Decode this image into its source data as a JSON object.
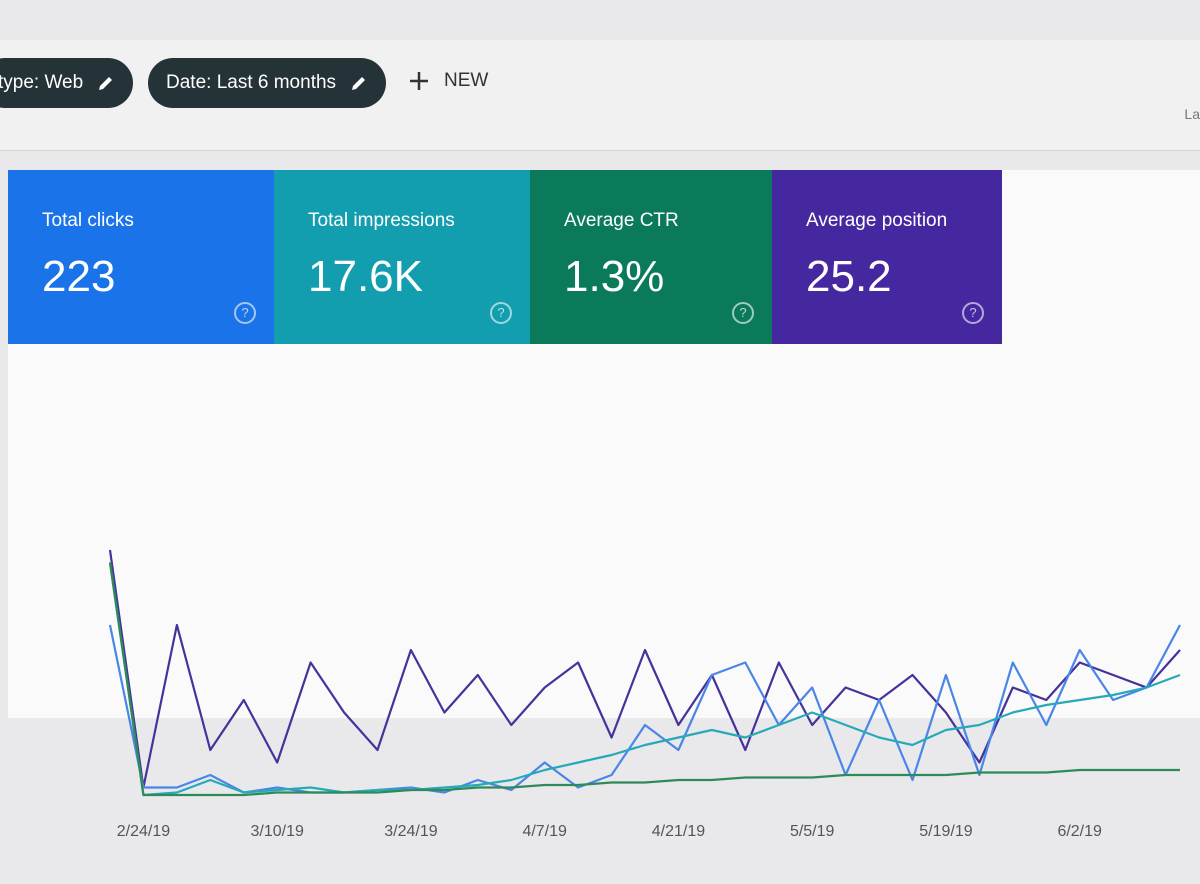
{
  "toolbar": {
    "chips": [
      "type: Web",
      "Date: Last 6 months"
    ],
    "new_button": "NEW",
    "right_text": "La"
  },
  "cards": [
    {
      "label": "Total clicks",
      "value": "223",
      "color": "#1a73e8"
    },
    {
      "label": "Total impressions",
      "value": "17.6K",
      "color": "#129eaf"
    },
    {
      "label": "Average CTR",
      "value": "1.3%",
      "color": "#0b7a5b"
    },
    {
      "label": "Average position",
      "value": "25.2",
      "color": "#4527a0"
    }
  ],
  "help_icon": "?",
  "chart_data": {
    "type": "line",
    "categories": [
      null,
      "2/24/19",
      null,
      null,
      null,
      "3/10/19",
      null,
      null,
      null,
      "3/24/19",
      null,
      null,
      null,
      "4/7/19",
      null,
      null,
      null,
      "4/21/19",
      null,
      null,
      null,
      "5/5/19",
      null,
      null,
      null,
      "5/19/19",
      null,
      null,
      null,
      "6/2/19",
      null,
      null,
      null
    ],
    "ylim": [
      0,
      100
    ],
    "series": [
      {
        "color": "#46329a",
        "values": [
          100,
          5,
          70,
          20,
          40,
          15,
          55,
          35,
          20,
          60,
          35,
          50,
          30,
          45,
          55,
          25,
          60,
          30,
          50,
          20,
          55,
          30,
          45,
          40,
          50,
          35,
          15,
          45,
          40,
          55,
          50,
          45,
          60
        ]
      },
      {
        "color": "#4a86e8",
        "values": [
          70,
          5,
          5,
          10,
          3,
          5,
          3,
          3,
          4,
          5,
          3,
          8,
          4,
          15,
          5,
          10,
          30,
          20,
          50,
          55,
          30,
          45,
          10,
          40,
          8,
          50,
          10,
          55,
          30,
          60,
          40,
          45,
          70
        ]
      },
      {
        "color": "#26a9b8",
        "values": [
          95,
          2,
          3,
          8,
          3,
          4,
          5,
          3,
          4,
          4,
          5,
          6,
          8,
          12,
          15,
          18,
          22,
          25,
          28,
          25,
          30,
          35,
          30,
          25,
          22,
          28,
          30,
          35,
          38,
          40,
          42,
          45,
          50
        ]
      },
      {
        "color": "#2e8b57",
        "values": [
          95,
          2,
          2,
          2,
          2,
          3,
          3,
          3,
          3,
          4,
          4,
          5,
          5,
          6,
          6,
          7,
          7,
          8,
          8,
          9,
          9,
          9,
          10,
          10,
          10,
          10,
          11,
          11,
          11,
          12,
          12,
          12,
          12
        ]
      }
    ]
  }
}
